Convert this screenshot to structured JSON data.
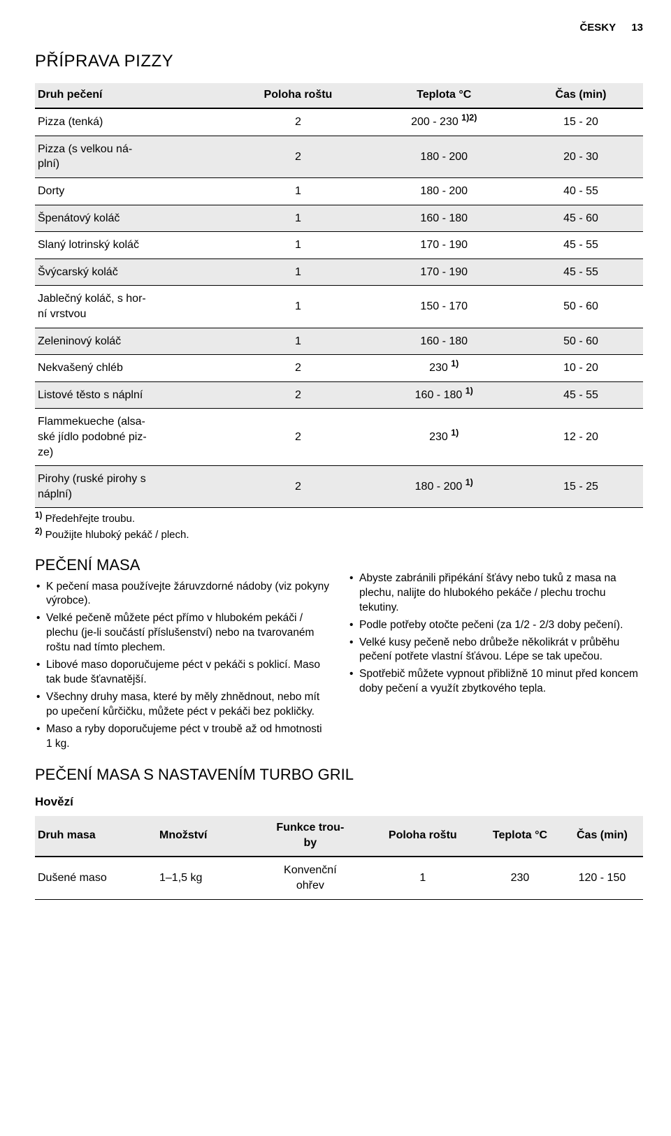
{
  "header": {
    "lang": "ČESKY",
    "page_number": "13"
  },
  "pizza": {
    "title": "PŘÍPRAVA PIZZY",
    "columns": [
      "Druh pečení",
      "Poloha roštu",
      "Teplota °C",
      "Čas (min)"
    ],
    "col_align": [
      "left",
      "center",
      "center",
      "center"
    ],
    "rows": [
      {
        "name": "Pizza (tenká)",
        "pos": "2",
        "temp": "200 - 230",
        "temp_sup": "1)2)",
        "time": "15 - 20",
        "shaded": false
      },
      {
        "name": "Pizza (s velkou ná-\nplní)",
        "pos": "2",
        "temp": "180 - 200",
        "temp_sup": "",
        "time": "20 - 30",
        "shaded": true
      },
      {
        "name": "Dorty",
        "pos": "1",
        "temp": "180 - 200",
        "temp_sup": "",
        "time": "40 - 55",
        "shaded": false
      },
      {
        "name": "Špenátový koláč",
        "pos": "1",
        "temp": "160 - 180",
        "temp_sup": "",
        "time": "45 - 60",
        "shaded": true
      },
      {
        "name": "Slaný lotrinský koláč",
        "pos": "1",
        "temp": "170 - 190",
        "temp_sup": "",
        "time": "45 - 55",
        "shaded": false
      },
      {
        "name": "Švýcarský koláč",
        "pos": "1",
        "temp": "170 - 190",
        "temp_sup": "",
        "time": "45 - 55",
        "shaded": true
      },
      {
        "name": "Jablečný koláč, s hor-\nní vrstvou",
        "pos": "1",
        "temp": "150 - 170",
        "temp_sup": "",
        "time": "50 - 60",
        "shaded": false
      },
      {
        "name": "Zeleninový koláč",
        "pos": "1",
        "temp": "160 - 180",
        "temp_sup": "",
        "time": "50 - 60",
        "shaded": true
      },
      {
        "name": "Nekvašený chléb",
        "pos": "2",
        "temp": "230",
        "temp_sup": "1)",
        "time": "10 - 20",
        "shaded": false
      },
      {
        "name": "Listové těsto s náplní",
        "pos": "2",
        "temp": "160 - 180",
        "temp_sup": "1)",
        "time": "45 - 55",
        "shaded": true
      },
      {
        "name": "Flammekueche (alsa-\nské jídlo podobné piz-\nze)",
        "pos": "2",
        "temp": "230",
        "temp_sup": "1)",
        "time": "12 - 20",
        "shaded": false
      },
      {
        "name": "Pirohy (ruské pirohy s\nnáplní)",
        "pos": "2",
        "temp": "180 - 200",
        "temp_sup": "1)",
        "time": "15 - 25",
        "shaded": true
      }
    ],
    "footnotes": [
      {
        "mark": "1)",
        "text": "Předehřejte troubu."
      },
      {
        "mark": "2)",
        "text": "Použijte hluboký pekáč / plech."
      }
    ]
  },
  "meat": {
    "title": "PEČENÍ MASA",
    "left_bullets": [
      "K pečení masa používejte žáruvzdorné nádoby (viz pokyny výrobce).",
      "Velké pečeně můžete péct přímo v hlubokém pekáči / plechu (je-li součástí příslušenství) nebo na tvarovaném roštu nad tímto plechem.",
      "Libové maso doporučujeme péct v pekáči s poklicí. Maso tak bude šťavnatější.",
      "Všechny druhy masa, které by měly zhnědnout, nebo mít po upečení kůrčičku, můžete péct v pekáči bez pokličky.",
      "Maso a ryby doporučujeme péct v troubě až od hmotnosti 1 kg."
    ],
    "right_bullets": [
      "Abyste zabránili připékání šťávy nebo tuků z masa na plechu, nalijte do hlubokého pekáče / plechu trochu tekutiny.",
      "Podle potřeby otočte pečeni (za 1/2 - 2/3 doby pečení).",
      "Velké kusy pečeně nebo drůbeže několikrát v průběhu pečení potřete vlastní šťávou. Lépe se tak upečou.",
      "Spotřebič můžete vypnout přibližně 10 minut před koncem doby pečení a využít zbytkového tepla."
    ]
  },
  "turbo": {
    "title": "PEČENÍ MASA S NASTAVENÍM TURBO GRIL",
    "subhead": "Hovězí",
    "columns": [
      "Druh masa",
      "Množství",
      "Funkce trou-\nby",
      "Poloha roštu",
      "Teplota °C",
      "Čas (min)"
    ],
    "col_align": [
      "left",
      "left",
      "center",
      "center",
      "center",
      "center"
    ],
    "rows": [
      {
        "name": "Dušené maso",
        "qty": "1–1,5 kg",
        "func": "Konvenční\nohřev",
        "pos": "1",
        "temp": "230",
        "time": "120 - 150",
        "shaded": false
      }
    ]
  },
  "colors": {
    "shade": "#eaeaea",
    "rule": "#000000",
    "text": "#000000",
    "bg": "#ffffff"
  }
}
